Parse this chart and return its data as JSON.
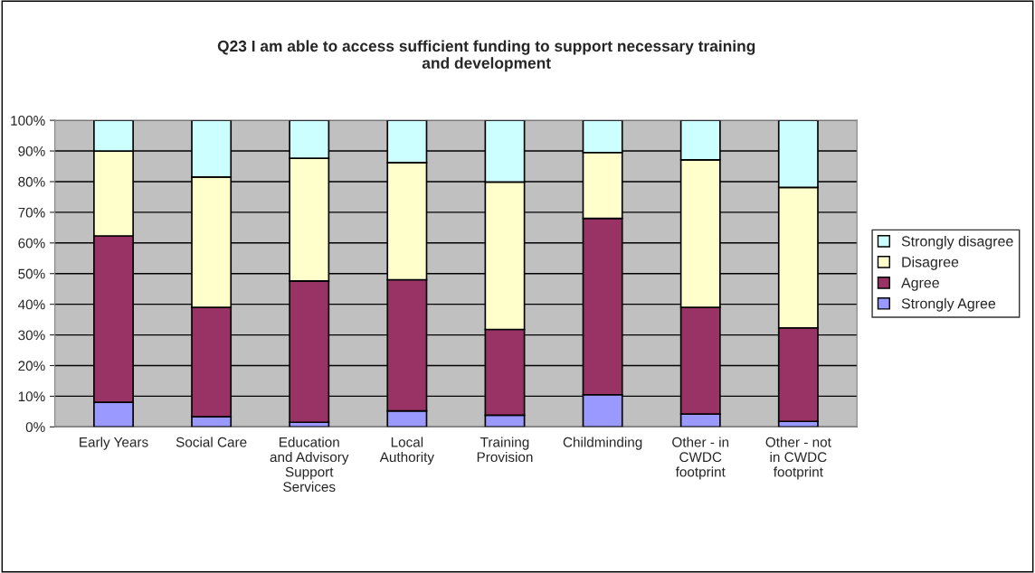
{
  "chart_data": {
    "type": "bar",
    "stacked": true,
    "title": "Q23 I am able to access sufficient funding to support necessary training and development",
    "categories": [
      "Early Years",
      "Social Care",
      "Education and Advisory Support Services",
      "Local Authority",
      "Training Provision",
      "Childminding",
      "Other - in CWDC footprint",
      "Other - not in CWDC footprint"
    ],
    "series": [
      {
        "name": "Strongly Agree",
        "color": "#9999ff",
        "values": [
          8,
          3.3,
          1.5,
          5.2,
          3.8,
          10.5,
          4.2,
          1.8
        ]
      },
      {
        "name": "Agree",
        "color": "#993366",
        "values": [
          54.3,
          35.7,
          46.1,
          42.8,
          28,
          57.5,
          34.8,
          30.5
        ]
      },
      {
        "name": "Disagree",
        "color": "#ffffcc",
        "values": [
          27.7,
          42.5,
          40,
          38.2,
          48.1,
          21.5,
          48.1,
          45.8
        ]
      },
      {
        "name": "Strongly disagree",
        "color": "#ccffff",
        "values": [
          10,
          18.5,
          12.4,
          13.8,
          20.1,
          10.5,
          12.9,
          21.9
        ]
      }
    ],
    "ylim": [
      0,
      100
    ],
    "yticks": [
      {
        "value": 0,
        "label": "0%"
      },
      {
        "value": 10,
        "label": "10%"
      },
      {
        "value": 20,
        "label": "20%"
      },
      {
        "value": 30,
        "label": "30%"
      },
      {
        "value": 40,
        "label": "40%"
      },
      {
        "value": 50,
        "label": "50%"
      },
      {
        "value": 60,
        "label": "60%"
      },
      {
        "value": 70,
        "label": "70%"
      },
      {
        "value": 80,
        "label": "80%"
      },
      {
        "value": 90,
        "label": "90%"
      },
      {
        "value": 100,
        "label": "100%"
      }
    ],
    "grid": "y",
    "legend": "right"
  }
}
